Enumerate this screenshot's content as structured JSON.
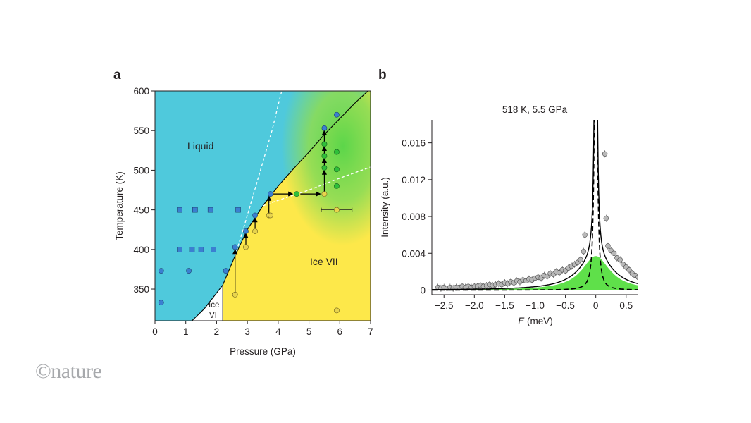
{
  "credit": "©nature",
  "chart_data": [
    {
      "type": "scatter",
      "panel": "a",
      "xlabel": "Pressure (GPa)",
      "ylabel": "Temperature (K)",
      "xlim": [
        0,
        7
      ],
      "ylim": [
        310,
        600
      ],
      "xticks": [
        0,
        1,
        2,
        3,
        4,
        5,
        6,
        7
      ],
      "yticks": [
        350,
        400,
        450,
        500,
        550,
        600
      ],
      "regions": [
        {
          "label": "Liquid",
          "color": "#4fc9dc"
        },
        {
          "label": "Ice VII",
          "color": "#fde84a"
        },
        {
          "label_line1": "Ice",
          "label_line2": "VI",
          "color": "#ffffff"
        }
      ],
      "melting_line": [
        [
          1.2,
          310
        ],
        [
          1.6,
          325
        ],
        [
          2.2,
          355
        ],
        [
          2.6,
          392
        ],
        [
          3.0,
          425
        ],
        [
          3.5,
          455
        ],
        [
          4.0,
          480
        ],
        [
          4.5,
          502
        ],
        [
          5.0,
          523
        ],
        [
          5.5,
          545
        ],
        [
          6.0,
          565
        ],
        [
          6.5,
          585
        ],
        [
          7.0,
          603
        ]
      ],
      "vi_vii_boundary": [
        [
          2.2,
          310
        ],
        [
          2.2,
          355
        ]
      ],
      "dashed_upper": [
        [
          2.6,
          392
        ],
        [
          2.9,
          430
        ],
        [
          3.2,
          470
        ],
        [
          3.5,
          510
        ],
        [
          3.8,
          550
        ],
        [
          4.05,
          590
        ],
        [
          4.15,
          605
        ]
      ],
      "dashed_lower": [
        [
          3.5,
          455
        ],
        [
          4.0,
          462
        ],
        [
          5.0,
          475
        ],
        [
          6.0,
          490
        ],
        [
          7.0,
          504
        ]
      ],
      "blue_squares": [
        [
          0.8,
          450
        ],
        [
          1.3,
          450
        ],
        [
          1.8,
          450
        ],
        [
          2.7,
          450
        ],
        [
          0.8,
          400
        ],
        [
          1.2,
          400
        ],
        [
          1.5,
          400
        ],
        [
          1.9,
          400
        ]
      ],
      "blue_circles": [
        [
          0.2,
          373
        ],
        [
          1.1,
          373
        ],
        [
          2.3,
          373
        ],
        [
          0.2,
          333
        ],
        [
          2.6,
          403
        ],
        [
          2.95,
          423
        ],
        [
          3.25,
          443
        ],
        [
          3.75,
          470
        ],
        [
          5.5,
          553
        ],
        [
          5.9,
          570
        ]
      ],
      "yellow_circles": [
        [
          2.6,
          343
        ],
        [
          2.95,
          403
        ],
        [
          3.25,
          423
        ],
        [
          3.7,
          443
        ],
        [
          3.75,
          443
        ],
        [
          5.5,
          470
        ],
        [
          5.9,
          450
        ],
        [
          5.9,
          323
        ]
      ],
      "green_circles": [
        [
          4.6,
          470
        ],
        [
          5.5,
          503
        ],
        [
          5.5,
          518
        ],
        [
          5.5,
          533
        ],
        [
          5.9,
          523
        ],
        [
          5.9,
          501
        ],
        [
          5.9,
          480
        ]
      ],
      "errorbar": {
        "x": 5.9,
        "y": 450,
        "xerr": 0.5
      },
      "arrows": [
        [
          [
            2.6,
            343
          ],
          [
            2.6,
            403
          ]
        ],
        [
          [
            2.95,
            403
          ],
          [
            2.95,
            423
          ]
        ],
        [
          [
            3.25,
            423
          ],
          [
            3.25,
            443
          ]
        ],
        [
          [
            3.7,
            443
          ],
          [
            3.7,
            470
          ]
        ],
        [
          [
            3.75,
            470
          ],
          [
            4.55,
            470
          ]
        ],
        [
          [
            4.65,
            470
          ],
          [
            5.45,
            470
          ]
        ],
        [
          [
            5.5,
            470
          ],
          [
            5.5,
            503
          ]
        ],
        [
          [
            5.5,
            503
          ],
          [
            5.5,
            518
          ]
        ],
        [
          [
            5.5,
            518
          ],
          [
            5.5,
            533
          ]
        ],
        [
          [
            5.5,
            533
          ],
          [
            5.5,
            553
          ]
        ]
      ]
    },
    {
      "type": "line",
      "panel": "b",
      "title": "518 K, 5.5 GPa",
      "xlabel_italic": "E",
      "xlabel_unit": " (meV)",
      "ylabel": "Intensity (a.u.)",
      "xlim": [
        -2.7,
        0.7
      ],
      "ylim": [
        -0.0005,
        0.0185
      ],
      "xticks": [
        -2.5,
        -2.0,
        -1.5,
        -1.0,
        -0.5,
        0,
        0.5
      ],
      "xtick_labels": [
        "−2.5",
        "−2.0",
        "−1.5",
        "−1.0",
        "−0.5",
        "0",
        "0.5"
      ],
      "yticks": [
        0,
        0.004,
        0.008,
        0.012,
        0.016
      ],
      "ytick_labels": [
        "0",
        "0.004",
        "0.008",
        "0.012",
        "0.016"
      ],
      "green_fill": {
        "center": 0.0,
        "amplitude": 0.0037,
        "gamma": 0.28
      },
      "dashed_peak": {
        "center": 0.0,
        "amplitude": 0.05,
        "gamma": 0.02
      },
      "fit_line": {
        "lor_amp": 0.0038,
        "lor_gamma": 0.34,
        "elastic_amp": 0.05,
        "elastic_gamma": 0.02
      },
      "data_points": [
        [
          -2.6,
          0.0003
        ],
        [
          -2.55,
          0.0002
        ],
        [
          -2.5,
          0.0003
        ],
        [
          -2.45,
          0.0002
        ],
        [
          -2.4,
          0.0003
        ],
        [
          -2.35,
          0.0002
        ],
        [
          -2.3,
          0.0003
        ],
        [
          -2.25,
          0.0003
        ],
        [
          -2.2,
          0.0004
        ],
        [
          -2.15,
          0.0003
        ],
        [
          -2.1,
          0.0004
        ],
        [
          -2.05,
          0.0003
        ],
        [
          -2.0,
          0.0004
        ],
        [
          -1.95,
          0.0004
        ],
        [
          -1.9,
          0.0005
        ],
        [
          -1.85,
          0.0004
        ],
        [
          -1.8,
          0.0005
        ],
        [
          -1.75,
          0.0006
        ],
        [
          -1.7,
          0.0005
        ],
        [
          -1.65,
          0.0006
        ],
        [
          -1.6,
          0.0007
        ],
        [
          -1.55,
          0.0006
        ],
        [
          -1.5,
          0.0008
        ],
        [
          -1.45,
          0.0007
        ],
        [
          -1.4,
          0.0009
        ],
        [
          -1.35,
          0.0008
        ],
        [
          -1.3,
          0.001
        ],
        [
          -1.25,
          0.0009
        ],
        [
          -1.2,
          0.0011
        ],
        [
          -1.15,
          0.001
        ],
        [
          -1.1,
          0.0012
        ],
        [
          -1.05,
          0.0011
        ],
        [
          -1.0,
          0.0013
        ],
        [
          -0.95,
          0.0014
        ],
        [
          -0.9,
          0.0013
        ],
        [
          -0.85,
          0.0016
        ],
        [
          -0.8,
          0.0015
        ],
        [
          -0.75,
          0.0018
        ],
        [
          -0.7,
          0.0017
        ],
        [
          -0.65,
          0.002
        ],
        [
          -0.6,
          0.0019
        ],
        [
          -0.55,
          0.0022
        ],
        [
          -0.5,
          0.0021
        ],
        [
          -0.45,
          0.0024
        ],
        [
          -0.4,
          0.0026
        ],
        [
          -0.35,
          0.0028
        ],
        [
          -0.3,
          0.003
        ],
        [
          -0.25,
          0.0033
        ],
        [
          -0.2,
          0.0042
        ],
        [
          -0.18,
          0.006
        ],
        [
          0.15,
          0.0148
        ],
        [
          0.17,
          0.0078
        ],
        [
          0.2,
          0.0048
        ],
        [
          0.25,
          0.0043
        ],
        [
          0.3,
          0.004
        ],
        [
          0.35,
          0.0035
        ],
        [
          0.4,
          0.0033
        ],
        [
          0.45,
          0.0028
        ],
        [
          0.5,
          0.0025
        ],
        [
          0.55,
          0.0022
        ],
        [
          0.6,
          0.0018
        ],
        [
          0.65,
          0.0016
        ],
        [
          0.7,
          0.0014
        ]
      ]
    }
  ]
}
